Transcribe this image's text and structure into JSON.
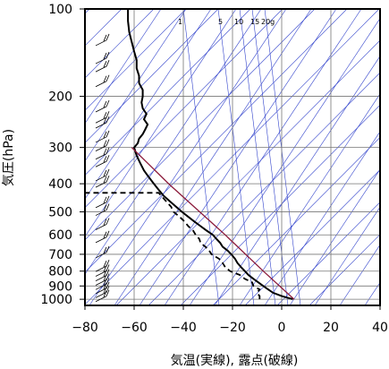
{
  "chart_data": {
    "type": "line",
    "title": "",
    "xlabel": "気温(実線), 露点(破線)",
    "ylabel": "気圧(hPa)",
    "xlim": [
      -80,
      40
    ],
    "ylim": [
      1050,
      100
    ],
    "y_scale": "log",
    "x_ticks": [
      "−80",
      "−60",
      "−40",
      "−20",
      "0",
      "20",
      "40"
    ],
    "y_ticks": [
      "100",
      "200",
      "300",
      "400",
      "500",
      "600",
      "700",
      "800",
      "900",
      "1000"
    ],
    "mixing_ratio_labels": [
      "1",
      "5",
      "10",
      "15",
      "20g"
    ],
    "colors": {
      "temperature": "#000000",
      "dewpoint": "#000000",
      "isotherm_grid": "#3344cc",
      "parcel": "#8b1a3a",
      "wind_barb": "#000000"
    },
    "series": [
      {
        "style": "solid",
        "pressure": [
          1000,
          975,
          950,
          925,
          900,
          875,
          850,
          825,
          800,
          775,
          750,
          725,
          700,
          680,
          660,
          640,
          620,
          600,
          580,
          560,
          540,
          520,
          500,
          480,
          460,
          440,
          420,
          400,
          380,
          360,
          340,
          320,
          300,
          290,
          280,
          270,
          260,
          250,
          240,
          230,
          220,
          210,
          200,
          190,
          180,
          170,
          160,
          150,
          140,
          130,
          120,
          110,
          100
        ],
        "temperature": [
          4.5,
          0,
          -3.5,
          -5.5,
          -7.5,
          -9.5,
          -11.5,
          -13.5,
          -15,
          -16.5,
          -18,
          -19,
          -20.5,
          -22,
          -24,
          -25,
          -26.5,
          -28,
          -30.5,
          -33,
          -35.5,
          -38,
          -40.5,
          -43,
          -45.5,
          -48,
          -50,
          -52,
          -54,
          -56,
          -57.5,
          -59,
          -60,
          -58.5,
          -58,
          -56.5,
          -55.5,
          -54.5,
          -56,
          -55,
          -56.5,
          -57,
          -56.5,
          -56.5,
          -58,
          -58,
          -59,
          -59,
          -60,
          -61,
          -62,
          -62.5,
          -62.5
        ]
      },
      {
        "style": "dashed",
        "pressure": [
          1000,
          975,
          950,
          925,
          900,
          875,
          850,
          825,
          800,
          775,
          750,
          725,
          700,
          680,
          660,
          640,
          620,
          600,
          580,
          560,
          540,
          520,
          500,
          480,
          460,
          440,
          430,
          430
        ],
        "dewpoint": [
          -9,
          -9,
          -10,
          -9,
          -11.5,
          -12,
          -15,
          -17,
          -21,
          -23,
          -24,
          -25.5,
          -28.5,
          -29.5,
          -31,
          -33,
          -33.5,
          -35,
          -36,
          -38,
          -39.5,
          -41.5,
          -44,
          -45,
          -47,
          -49,
          -50,
          -80
        ]
      },
      {
        "style": "parcel",
        "pressure": [
          1000,
          800,
          600,
          400,
          300
        ],
        "temperature": [
          5,
          -7.5,
          -23,
          -46,
          -61
        ]
      }
    ],
    "wind_barbs": {
      "pressure": [
        990,
        960,
        930,
        900,
        870,
        840,
        810,
        780,
        700,
        620,
        560,
        500,
        470,
        400,
        380,
        340,
        320,
        300,
        280,
        250,
        240,
        220,
        180,
        160,
        150,
        130
      ]
    }
  }
}
